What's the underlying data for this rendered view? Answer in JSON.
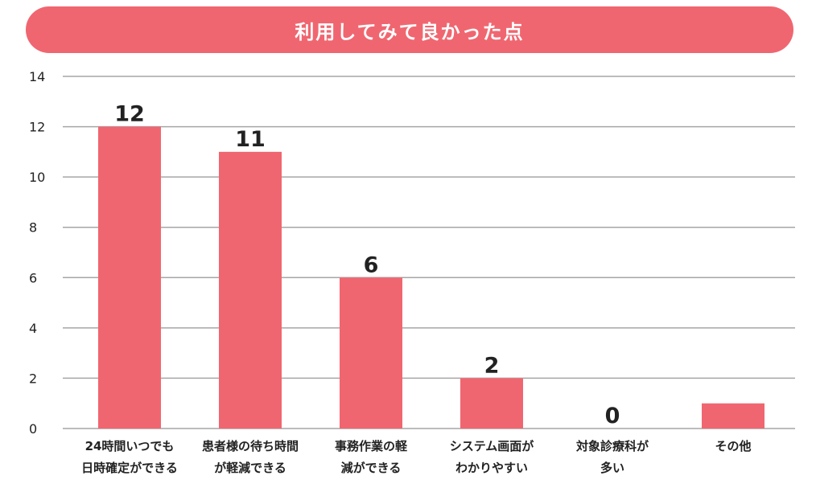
{
  "title": "利用してみて良かった点",
  "colors": {
    "bar": "#f06670",
    "title_bg": "#f06670",
    "grid": "#a6a6a6",
    "text": "#222222"
  },
  "chart_data": {
    "type": "bar",
    "title": "利用してみて良かった点",
    "xlabel": "",
    "ylabel": "",
    "ylim": [
      0,
      14
    ],
    "yticks": [
      "0",
      "2",
      "4",
      "6",
      "8",
      "10",
      "12",
      "14"
    ],
    "grid": true,
    "categories": [
      {
        "line1": "24時間いつでも",
        "line2": "日時確定ができる"
      },
      {
        "line1": "患者様の待ち時間",
        "line2": "が軽減できる"
      },
      {
        "line1": "事務作業の軽",
        "line2": "減ができる"
      },
      {
        "line1": "システム画面が",
        "line2": "わかりやすい"
      },
      {
        "line1": "対象診療科が",
        "line2": "多い"
      },
      {
        "line1": "その他",
        "line2": ""
      }
    ],
    "values": [
      12,
      11,
      6,
      2,
      0,
      1
    ],
    "data_labels": [
      "12",
      "11",
      "6",
      "2",
      "0",
      ""
    ]
  }
}
